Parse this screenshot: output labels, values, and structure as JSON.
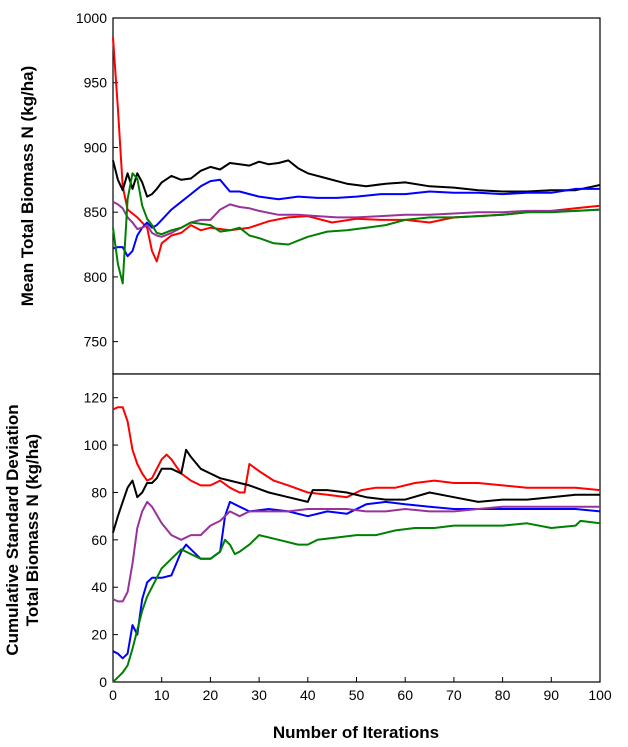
{
  "chart_data": [
    {
      "type": "line",
      "panel": "top",
      "title": "",
      "xlabel": "",
      "ylabel": "Mean Total Biomass N (kg/ha)",
      "xlim": [
        0,
        100
      ],
      "ylim": [
        725,
        1000
      ],
      "yticks": [
        750,
        800,
        850,
        900,
        950,
        1000
      ],
      "grid": false,
      "legend": "none",
      "series": [
        {
          "color": "#ff0000",
          "x": [
            0,
            1,
            2,
            3,
            5,
            7,
            8,
            9,
            10,
            12,
            14,
            16,
            18,
            20,
            24,
            28,
            32,
            36,
            40,
            45,
            50,
            55,
            60,
            65,
            70,
            75,
            80,
            85,
            90,
            95,
            100
          ],
          "values": [
            985,
            930,
            870,
            852,
            846,
            838,
            820,
            812,
            826,
            832,
            834,
            840,
            836,
            838,
            836,
            838,
            843,
            846,
            847,
            842,
            845,
            844,
            844,
            842,
            846,
            847,
            848,
            850,
            851,
            853,
            855
          ]
        },
        {
          "color": "#000000",
          "x": [
            0,
            1,
            2,
            3,
            4,
            5,
            6,
            7,
            8,
            9,
            10,
            12,
            14,
            16,
            18,
            20,
            22,
            24,
            26,
            28,
            30,
            32,
            34,
            36,
            38,
            40,
            44,
            48,
            52,
            56,
            60,
            65,
            70,
            75,
            80,
            85,
            90,
            95,
            100
          ],
          "values": [
            890,
            875,
            867,
            880,
            868,
            880,
            873,
            862,
            864,
            868,
            873,
            878,
            875,
            876,
            882,
            885,
            883,
            888,
            887,
            886,
            889,
            887,
            888,
            890,
            884,
            880,
            876,
            872,
            870,
            872,
            873,
            870,
            869,
            867,
            866,
            866,
            867,
            867,
            871
          ]
        },
        {
          "color": "#0000ff",
          "x": [
            0,
            1,
            2,
            3,
            4,
            5,
            6,
            7,
            8,
            9,
            10,
            12,
            14,
            16,
            18,
            20,
            22,
            24,
            26,
            28,
            30,
            34,
            38,
            42,
            46,
            50,
            55,
            60,
            65,
            70,
            75,
            80,
            85,
            90,
            95,
            100
          ],
          "values": [
            822,
            823,
            823,
            816,
            820,
            832,
            838,
            842,
            838,
            840,
            844,
            852,
            858,
            864,
            870,
            874,
            875,
            866,
            866,
            864,
            862,
            860,
            862,
            861,
            861,
            862,
            864,
            864,
            866,
            865,
            865,
            864,
            865,
            865,
            868,
            868
          ]
        },
        {
          "color": "#993399",
          "x": [
            0,
            1,
            2,
            3,
            4,
            5,
            6,
            7,
            8,
            9,
            10,
            12,
            14,
            16,
            18,
            20,
            22,
            24,
            26,
            28,
            30,
            34,
            38,
            42,
            46,
            50,
            55,
            60,
            65,
            70,
            75,
            80,
            85,
            90,
            95,
            100
          ],
          "values": [
            858,
            856,
            853,
            846,
            842,
            837,
            838,
            840,
            834,
            832,
            831,
            834,
            838,
            842,
            844,
            844,
            852,
            856,
            854,
            853,
            851,
            848,
            848,
            847,
            846,
            846,
            847,
            848,
            848,
            849,
            850,
            850,
            851,
            851,
            851,
            852
          ]
        },
        {
          "color": "#008000",
          "x": [
            0,
            1,
            2,
            3,
            4,
            5,
            6,
            7,
            8,
            9,
            10,
            12,
            14,
            16,
            18,
            20,
            22,
            24,
            26,
            28,
            30,
            33,
            36,
            40,
            44,
            48,
            52,
            56,
            60,
            65,
            70,
            75,
            80,
            85,
            90,
            95,
            100
          ],
          "values": [
            838,
            810,
            795,
            860,
            880,
            876,
            855,
            845,
            840,
            834,
            833,
            836,
            838,
            842,
            841,
            840,
            835,
            836,
            838,
            832,
            830,
            826,
            825,
            831,
            835,
            836,
            838,
            840,
            844,
            846,
            846,
            847,
            848,
            850,
            850,
            851,
            852
          ]
        }
      ]
    },
    {
      "type": "line",
      "panel": "bottom",
      "title": "",
      "xlabel": "Number of Iterations",
      "ylabel": "Cumulative Standard Deviation\nTotal Biomass N (kg/ha)",
      "xlim": [
        0,
        100
      ],
      "ylim": [
        0,
        130
      ],
      "yticks": [
        0,
        20,
        40,
        60,
        80,
        100,
        120
      ],
      "xticks": [
        0,
        10,
        20,
        30,
        40,
        50,
        60,
        70,
        80,
        90,
        100
      ],
      "grid": false,
      "legend": "none",
      "series": [
        {
          "color": "#ff0000",
          "x": [
            0,
            1,
            2,
            3,
            4,
            5,
            6,
            7,
            8,
            9,
            10,
            11,
            12,
            13,
            14,
            16,
            18,
            20,
            22,
            24,
            26,
            27,
            28,
            30,
            33,
            36,
            40,
            44,
            48,
            51,
            54,
            58,
            62,
            66,
            70,
            75,
            80,
            85,
            90,
            95,
            100
          ],
          "values": [
            115,
            116,
            116,
            110,
            98,
            92,
            88,
            85,
            86,
            90,
            94,
            96,
            94,
            91,
            88,
            85,
            83,
            83,
            85,
            82,
            80,
            80,
            92,
            89,
            85,
            83,
            80,
            79,
            78,
            81,
            82,
            82,
            84,
            85,
            84,
            84,
            83,
            82,
            82,
            82,
            81
          ]
        },
        {
          "color": "#000000",
          "x": [
            0,
            1,
            2,
            3,
            4,
            5,
            6,
            7,
            8,
            9,
            10,
            12,
            14,
            15,
            16,
            18,
            20,
            22,
            24,
            28,
            32,
            36,
            40,
            41,
            44,
            48,
            52,
            56,
            60,
            65,
            70,
            75,
            80,
            85,
            90,
            95,
            100
          ],
          "values": [
            63,
            70,
            76,
            82,
            85,
            78,
            80,
            84,
            84,
            86,
            90,
            90,
            88,
            98,
            95,
            90,
            88,
            86,
            85,
            83,
            80,
            78,
            76,
            81,
            81,
            80,
            78,
            77,
            77,
            80,
            78,
            76,
            77,
            77,
            78,
            79,
            79
          ]
        },
        {
          "color": "#0000ff",
          "x": [
            0,
            1,
            2,
            3,
            4,
            5,
            6,
            7,
            8,
            9,
            10,
            12,
            14,
            15,
            16,
            18,
            20,
            22,
            23,
            24,
            26,
            28,
            32,
            36,
            40,
            44,
            48,
            52,
            56,
            60,
            65,
            70,
            75,
            80,
            85,
            90,
            95,
            100
          ],
          "values": [
            13,
            12,
            10,
            12,
            24,
            20,
            35,
            42,
            44,
            44,
            44,
            45,
            55,
            58,
            56,
            52,
            52,
            55,
            70,
            76,
            74,
            72,
            73,
            72,
            70,
            72,
            71,
            75,
            76,
            75,
            74,
            73,
            73,
            73,
            73,
            73,
            73,
            72
          ]
        },
        {
          "color": "#993399",
          "x": [
            0,
            1,
            2,
            3,
            4,
            5,
            6,
            7,
            8,
            10,
            12,
            14,
            16,
            18,
            20,
            22,
            24,
            26,
            28,
            32,
            36,
            40,
            44,
            48,
            52,
            56,
            60,
            65,
            70,
            75,
            80,
            85,
            90,
            95,
            100
          ],
          "values": [
            35,
            34,
            34,
            38,
            50,
            65,
            72,
            76,
            74,
            67,
            62,
            60,
            62,
            62,
            66,
            68,
            72,
            70,
            72,
            72,
            72,
            73,
            73,
            73,
            72,
            72,
            73,
            72,
            72,
            73,
            74,
            74,
            74,
            74,
            74
          ]
        },
        {
          "color": "#008000",
          "x": [
            0,
            1,
            2,
            3,
            4,
            5,
            6,
            7,
            8,
            10,
            12,
            14,
            16,
            18,
            20,
            22,
            23,
            24,
            25,
            26,
            28,
            30,
            34,
            38,
            40,
            42,
            46,
            50,
            54,
            58,
            62,
            66,
            70,
            75,
            80,
            85,
            90,
            95,
            96,
            100
          ],
          "values": [
            0,
            2,
            4,
            7,
            14,
            22,
            30,
            36,
            40,
            48,
            52,
            56,
            54,
            52,
            52,
            55,
            60,
            58,
            54,
            55,
            58,
            62,
            60,
            58,
            58,
            60,
            61,
            62,
            62,
            64,
            65,
            65,
            66,
            66,
            66,
            67,
            65,
            66,
            68,
            67
          ]
        }
      ]
    }
  ]
}
